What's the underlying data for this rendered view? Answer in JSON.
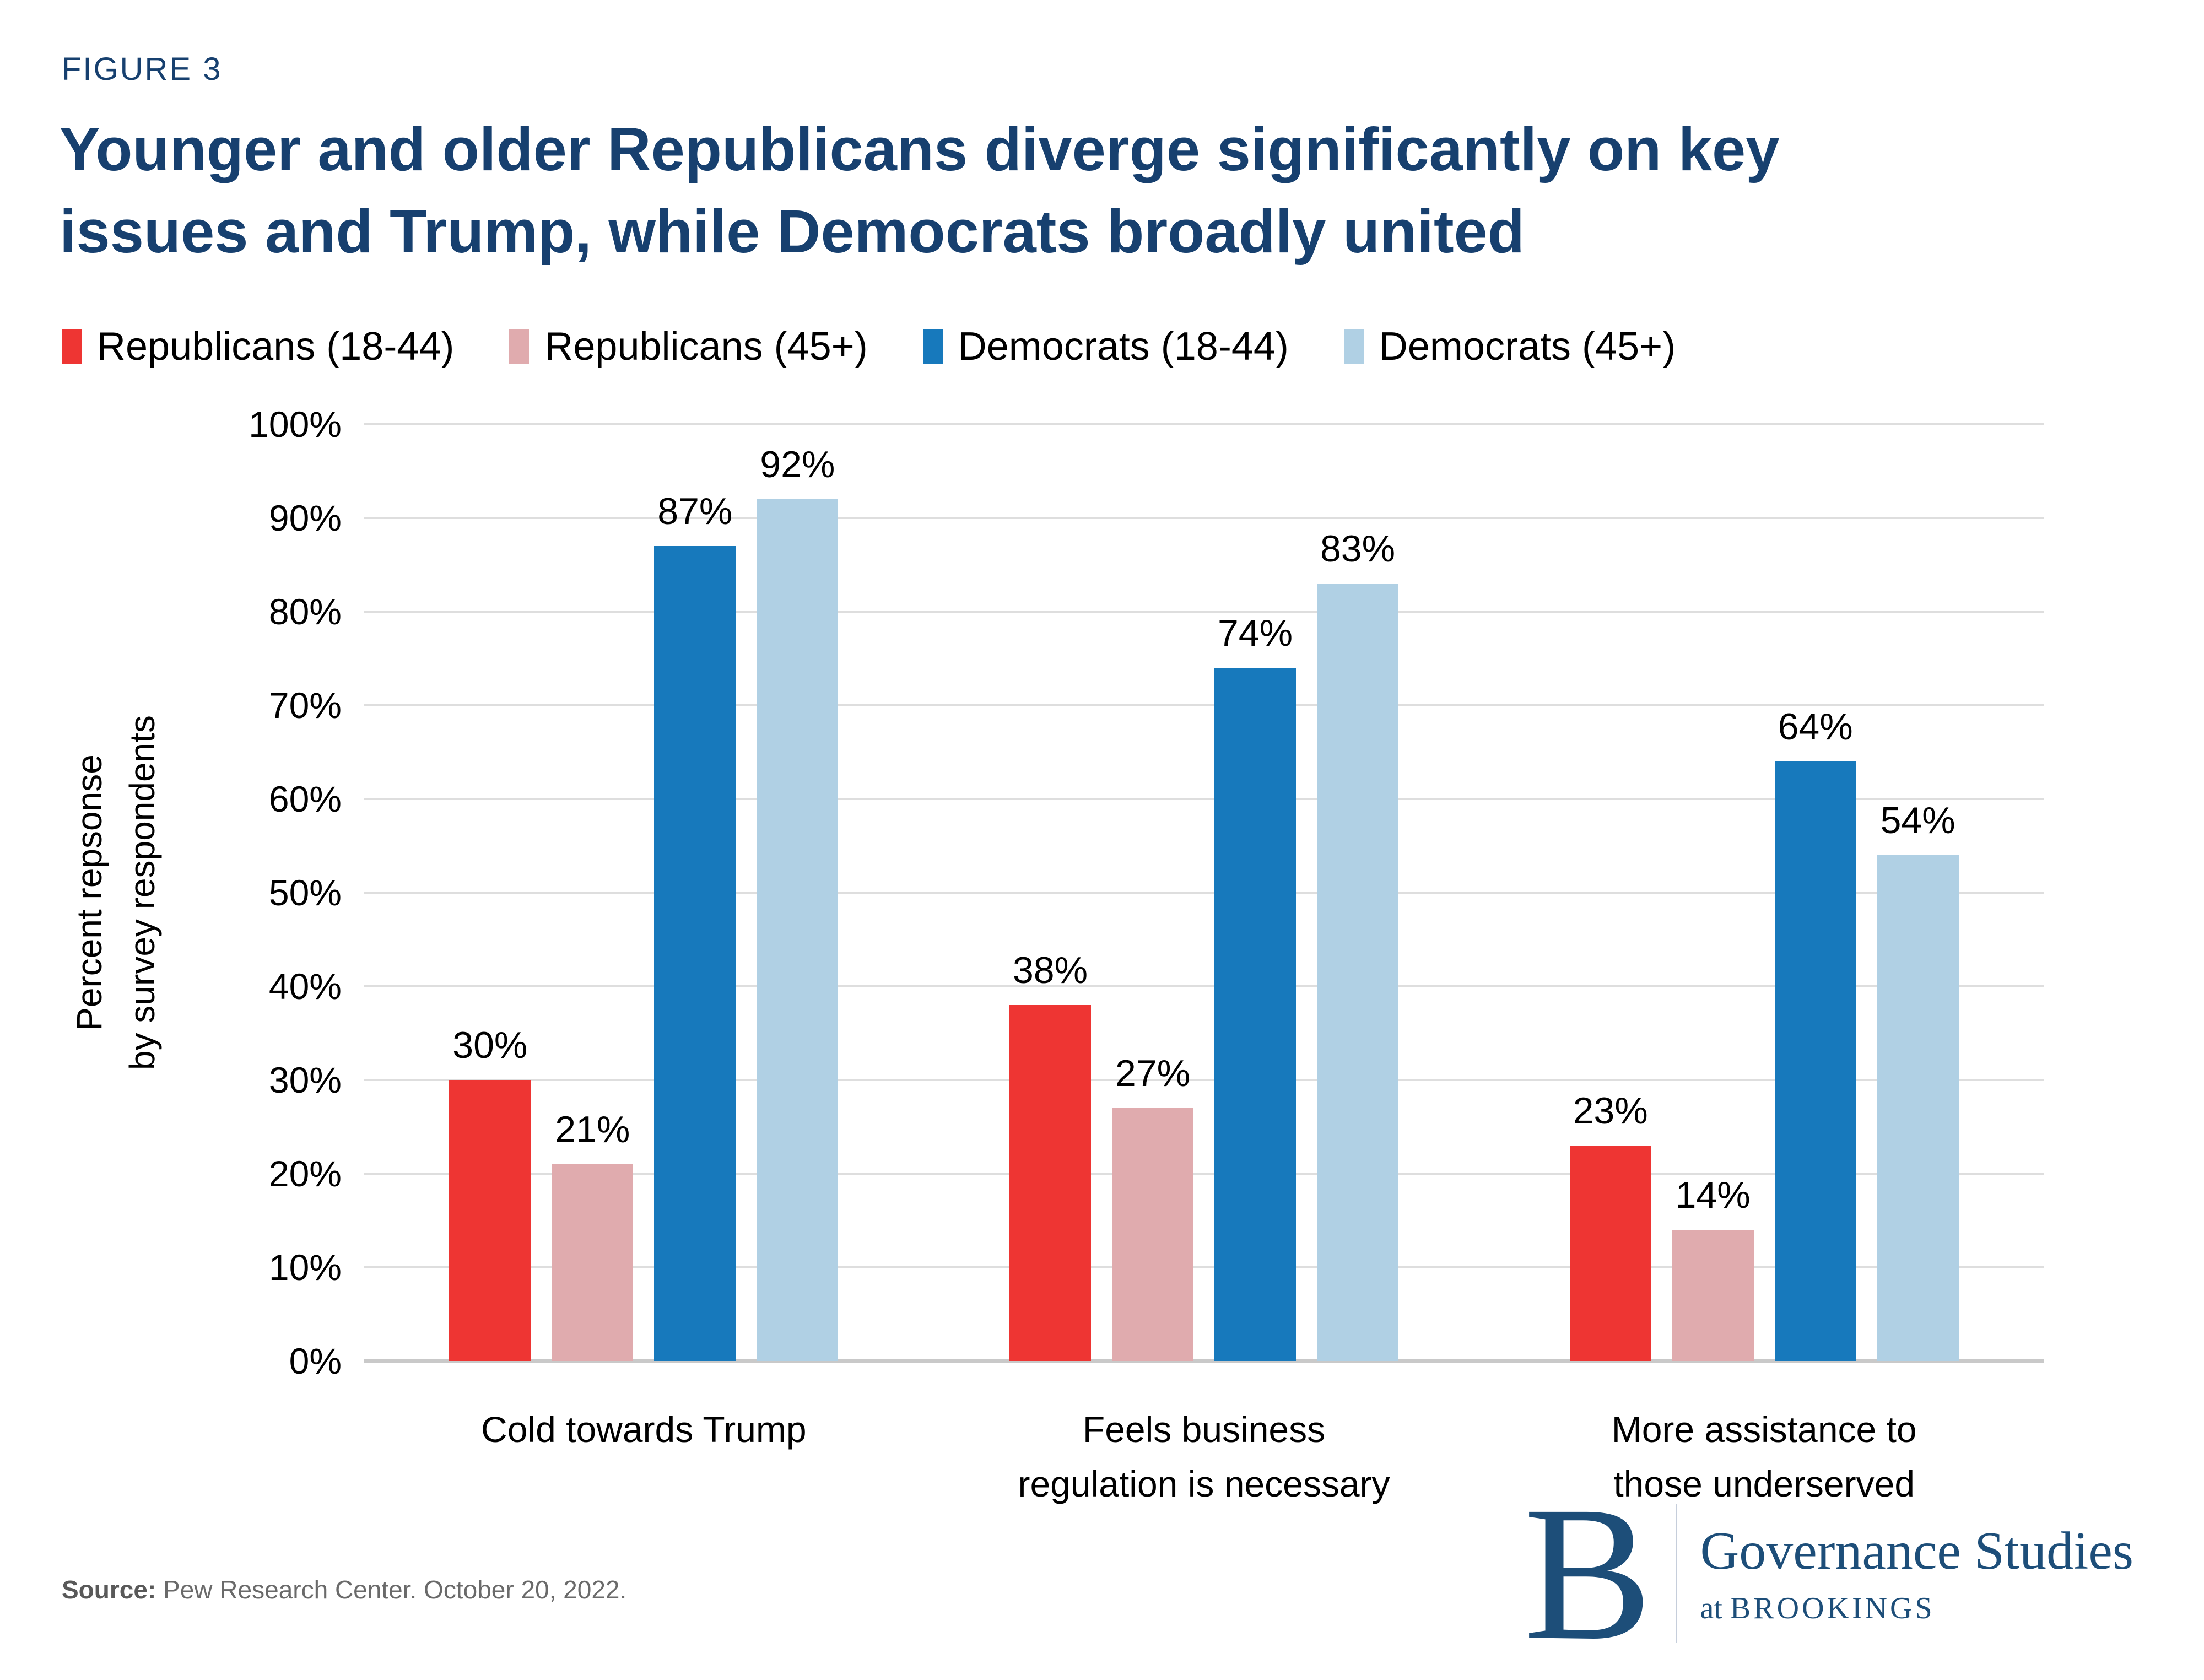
{
  "figure_label": "FIGURE 3",
  "title_lines": [
    "Younger and older Republicans diverge significantly on key",
    "issues and Trump, while Democrats broadly united"
  ],
  "source": {
    "label": "Source:",
    "text": " Pew Research Center. October 20, 2022."
  },
  "logo": {
    "letter": "B",
    "name": "Governance Studies",
    "sub_prefix": "at ",
    "sub": "BROOKINGS"
  },
  "colors": {
    "navy": "#17406f",
    "logo-navy": "#1d4e79",
    "grid": "#dedede",
    "baseline": "#c9c9c9",
    "source-gray": "#6a6a6a",
    "logo-divider": "#c6cedb"
  },
  "chart_data": {
    "type": "bar",
    "title": "Younger and older Republicans diverge significantly on key issues and Trump, while Democrats broadly united",
    "categories": [
      "Cold towards Trump",
      "Feels business\nregulation is necessary",
      "More assistance to\nthose underserved"
    ],
    "series": [
      {
        "name": "Republicans (18-44)",
        "color": "#ee3533",
        "values": [
          30,
          38,
          23
        ]
      },
      {
        "name": "Republicans (45+)",
        "color": "#e0abae",
        "values": [
          21,
          27,
          14
        ]
      },
      {
        "name": "Democrats (18-44)",
        "color": "#1779bc",
        "values": [
          87,
          74,
          64
        ]
      },
      {
        "name": "Democrats (45+)",
        "color": "#b0d0e4",
        "values": [
          92,
          83,
          54
        ]
      }
    ],
    "value_suffix": "%",
    "ylabel": "Percent repsonse\nby survey respondents",
    "ylabel_lines": [
      "Percent repsonse",
      "by survey respondents"
    ],
    "yticks": [
      "100%",
      "90%",
      "80%",
      "70%",
      "60%",
      "50%",
      "40%",
      "30%",
      "20%",
      "10%",
      "0%"
    ],
    "ylim": [
      0,
      100
    ],
    "grid": true,
    "legend_position": "top"
  }
}
